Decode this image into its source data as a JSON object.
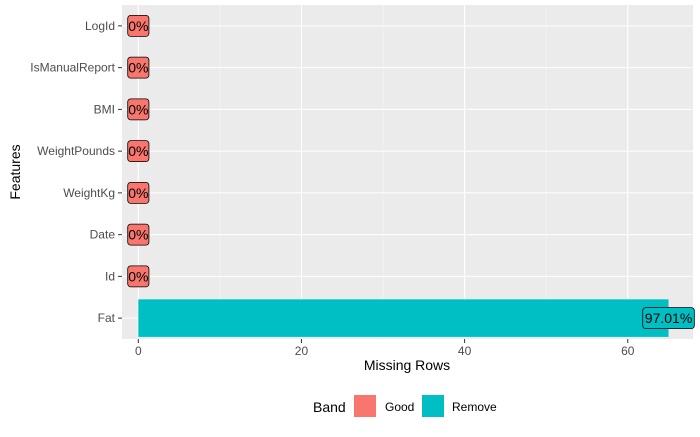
{
  "chart_data": {
    "type": "bar",
    "orientation": "horizontal",
    "categories": [
      "LogId",
      "IsManualReport",
      "BMI",
      "WeightPounds",
      "WeightKg",
      "Date",
      "Id",
      "Fat"
    ],
    "values": [
      0,
      0,
      0,
      0,
      0,
      0,
      0,
      65
    ],
    "labels": [
      "0%",
      "0%",
      "0%",
      "0%",
      "0%",
      "0%",
      "0%",
      "97.01%"
    ],
    "bands": [
      "Good",
      "Good",
      "Good",
      "Good",
      "Good",
      "Good",
      "Good",
      "Remove"
    ],
    "xlabel": "Missing Rows",
    "ylabel": "Features",
    "xlim": [
      -2,
      68
    ],
    "xticks": [
      0,
      20,
      40,
      60
    ],
    "grid": true,
    "legend": {
      "title": "Band",
      "position": "bottom",
      "items": [
        {
          "name": "Good",
          "color": "#F8766D"
        },
        {
          "name": "Remove",
          "color": "#00BFC4"
        }
      ]
    },
    "colors": {
      "Good": "#F8766D",
      "Remove": "#00BFC4",
      "panel": "#EBEBEB",
      "grid": "#FFFFFF",
      "text": "#4D4D4D",
      "title": "#000000"
    }
  }
}
